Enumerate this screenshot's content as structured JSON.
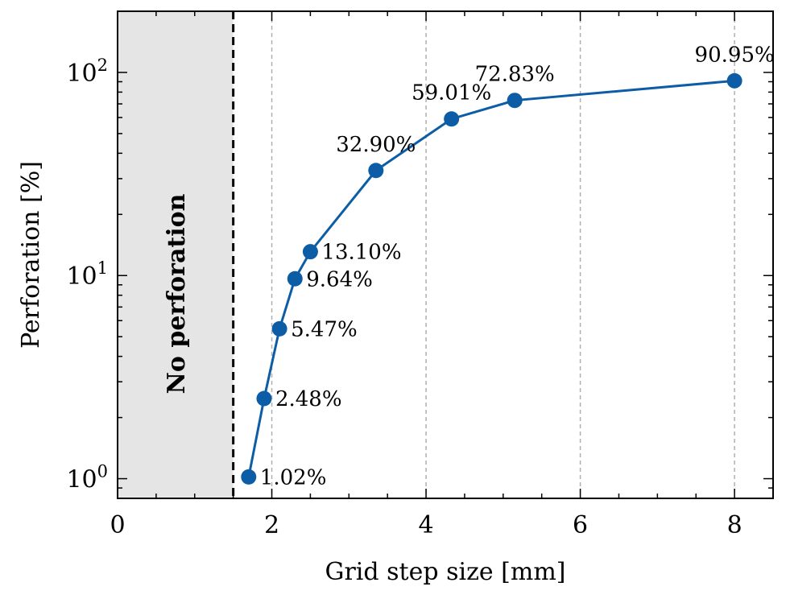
{
  "chart_data": {
    "type": "line",
    "xlabel": "Grid step size [mm]",
    "ylabel": "Perforation [%]",
    "xlim": [
      0,
      8.5
    ],
    "ylim": [
      0.8,
      200
    ],
    "yscale": "log",
    "x_ticks": [
      {
        "value": 0,
        "label": "0"
      },
      {
        "value": 2,
        "label": "2"
      },
      {
        "value": 4,
        "label": "4"
      },
      {
        "value": 6,
        "label": "6"
      },
      {
        "value": 8,
        "label": "8"
      }
    ],
    "y_ticks": [
      {
        "value": 1,
        "base": "10",
        "exp": "0"
      },
      {
        "value": 10,
        "base": "10",
        "exp": "1"
      },
      {
        "value": 100,
        "base": "10",
        "exp": "2"
      }
    ],
    "grid": "vertical dashed at major x ticks",
    "series": [
      {
        "color": "#0C5DA5",
        "marker": "circle",
        "points": [
          {
            "x": 1.7,
            "y": 1.02,
            "label": "1.02%",
            "label_pos": "right"
          },
          {
            "x": 1.9,
            "y": 2.48,
            "label": "2.48%",
            "label_pos": "right"
          },
          {
            "x": 2.1,
            "y": 5.47,
            "label": "5.47%",
            "label_pos": "right"
          },
          {
            "x": 2.3,
            "y": 9.64,
            "label": "9.64%",
            "label_pos": "right"
          },
          {
            "x": 2.5,
            "y": 13.1,
            "label": "13.10%",
            "label_pos": "right"
          },
          {
            "x": 3.35,
            "y": 32.9,
            "label": "32.90%",
            "label_pos": "above"
          },
          {
            "x": 4.33,
            "y": 59.01,
            "label": "59.01%",
            "label_pos": "above"
          },
          {
            "x": 5.15,
            "y": 72.83,
            "label": "72.83%",
            "label_pos": "above"
          },
          {
            "x": 8.0,
            "y": 90.95,
            "label": "90.95%",
            "label_pos": "above"
          }
        ]
      }
    ],
    "shaded_region": {
      "x_from": 0,
      "x_to": 1.5,
      "color": "#e5e5e5",
      "label": "No perforation"
    },
    "threshold_line": {
      "x": 1.5,
      "style": "dashed",
      "color": "#000000"
    }
  }
}
